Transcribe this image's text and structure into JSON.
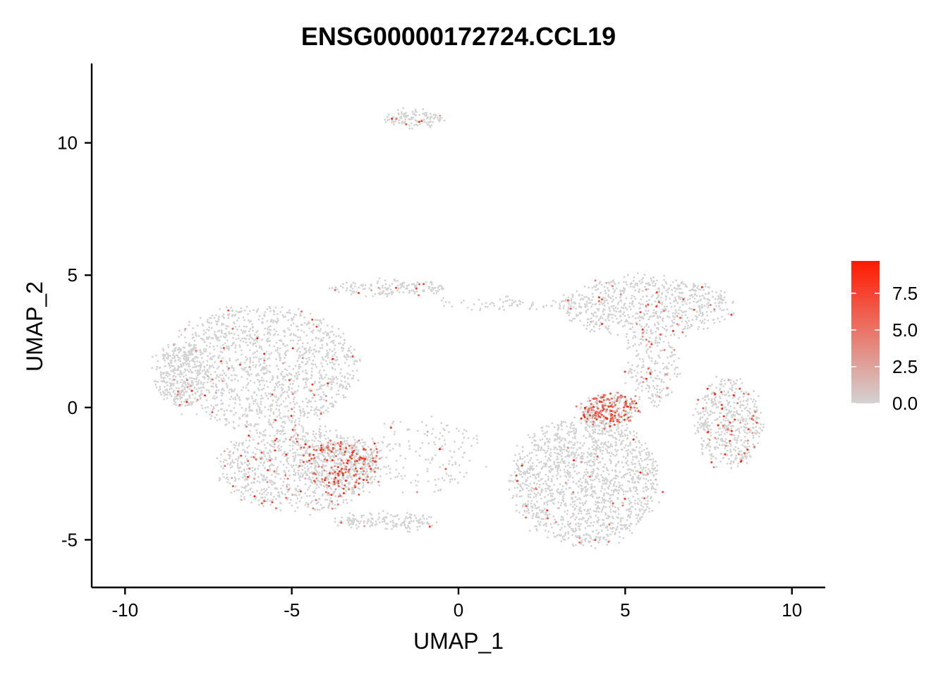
{
  "chart_data": {
    "type": "scatter",
    "title": "ENSG00000172724.CCL19",
    "xlabel": "UMAP_1",
    "ylabel": "UMAP_2",
    "xlim": [
      -11,
      11
    ],
    "ylim": [
      -6.8,
      13.0
    ],
    "xticks": [
      -10,
      -5,
      0,
      5,
      10
    ],
    "yticks": [
      -5,
      0,
      5,
      10
    ],
    "xtick_labels": [
      "-10",
      "-5",
      "0",
      "5",
      "10"
    ],
    "ytick_labels": [
      "-5",
      "0",
      "5",
      "10"
    ],
    "grid": false,
    "legend": {
      "placement": "right",
      "min": 0,
      "max": 9.7,
      "ticks": [
        0.0,
        2.5,
        5.0,
        7.5
      ],
      "tick_labels": [
        "0.0",
        "2.5",
        "5.0",
        "7.5"
      ],
      "low_color": "#d3d3d3",
      "high_color": "#ff1a00"
    },
    "point_color_base": "#d3d3d3",
    "clusters": [
      {
        "cx": -6.0,
        "cy": 1.5,
        "rx": 3.0,
        "ry": 2.3,
        "n": 1400,
        "expr_rate": 0.03
      },
      {
        "cx": -4.8,
        "cy": -2.3,
        "rx": 2.4,
        "ry": 1.6,
        "n": 900,
        "expr_rate": 0.12
      },
      {
        "cx": -3.5,
        "cy": -2.2,
        "rx": 1.2,
        "ry": 0.9,
        "n": 350,
        "expr_rate": 0.35
      },
      {
        "cx": -2.2,
        "cy": -4.3,
        "rx": 1.5,
        "ry": 0.3,
        "n": 160,
        "expr_rate": 0.02
      },
      {
        "cx": 3.8,
        "cy": -2.8,
        "rx": 2.2,
        "ry": 2.4,
        "n": 1500,
        "expr_rate": 0.02
      },
      {
        "cx": 4.5,
        "cy": -0.1,
        "rx": 0.9,
        "ry": 0.6,
        "n": 300,
        "expr_rate": 0.55
      },
      {
        "cx": 5.6,
        "cy": 3.8,
        "rx": 2.6,
        "ry": 1.1,
        "n": 700,
        "expr_rate": 0.05
      },
      {
        "cx": 5.8,
        "cy": 1.5,
        "rx": 0.8,
        "ry": 1.5,
        "n": 200,
        "expr_rate": 0.12
      },
      {
        "cx": 8.1,
        "cy": -0.6,
        "rx": 1.0,
        "ry": 1.7,
        "n": 500,
        "expr_rate": 0.1
      },
      {
        "cx": -1.3,
        "cy": 10.9,
        "rx": 0.9,
        "ry": 0.25,
        "n": 120,
        "expr_rate": 0.08
      },
      {
        "cx": -2.1,
        "cy": 4.5,
        "rx": 1.8,
        "ry": 0.25,
        "n": 160,
        "expr_rate": 0.04
      },
      {
        "cx": 1.4,
        "cy": 3.9,
        "rx": 2.4,
        "ry": 0.18,
        "n": 70,
        "expr_rate": 0.0
      },
      {
        "cx": -1.2,
        "cy": -1.8,
        "rx": 2.0,
        "ry": 1.4,
        "n": 180,
        "expr_rate": 0.06
      },
      {
        "cx": -8.3,
        "cy": 1.2,
        "rx": 0.8,
        "ry": 1.2,
        "n": 250,
        "expr_rate": 0.03
      }
    ]
  }
}
